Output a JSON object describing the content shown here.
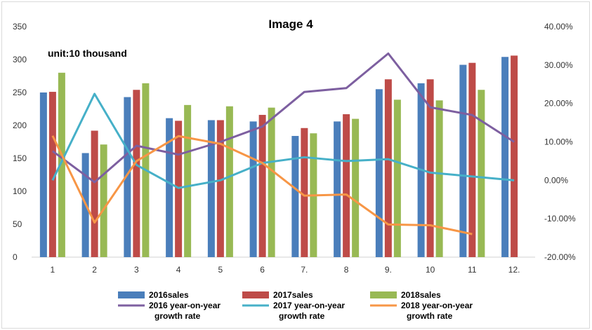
{
  "chart_data": {
    "type": "bar",
    "title": "Image 4",
    "annotation": "unit:10 thousand",
    "categories": [
      "1",
      "2",
      "3",
      "4",
      "5",
      "6",
      "7.",
      "8",
      "9.",
      "10",
      "11",
      "12."
    ],
    "y_left": {
      "range": [
        0,
        350
      ],
      "ticks": [
        "0",
        "50",
        "100",
        "150",
        "200",
        "250",
        "300",
        "350"
      ]
    },
    "y_right": {
      "range": [
        -20,
        40
      ],
      "ticks": [
        "-20.00%",
        "-10.00%",
        "0.00%",
        "10.00%",
        "20.00%",
        "30.00%",
        "40.00%"
      ]
    },
    "grid": false,
    "legend_placement": "bottom",
    "bar_series": [
      {
        "name": "2016sales",
        "color": "#4a7ebb",
        "values": [
          250,
          158,
          243,
          211,
          208,
          206,
          184,
          206,
          255,
          264,
          292,
          304
        ]
      },
      {
        "name": "2017sales",
        "color": "#be4b48",
        "values": [
          251,
          192,
          254,
          207,
          208,
          216,
          196,
          217,
          270,
          270,
          295,
          306
        ]
      },
      {
        "name": "2018sales",
        "color": "#98b954",
        "values": [
          280,
          171,
          264,
          231,
          229,
          227,
          188,
          210,
          239,
          238,
          254,
          null
        ]
      }
    ],
    "line_series": [
      {
        "name": "2016 year-on-year growth rate",
        "color": "#7d5fa0",
        "axis": "right",
        "values": [
          7.6,
          -0.5,
          9,
          6.7,
          10,
          14,
          23,
          24,
          33,
          19,
          17,
          10
        ]
      },
      {
        "name": "2017 year-on-year growth rate",
        "color": "#46b0c8",
        "axis": "right",
        "values": [
          0,
          22.5,
          4,
          -2,
          0,
          4.5,
          6,
          5,
          5.5,
          2,
          1,
          0
        ]
      },
      {
        "name": "2018 year-on-year growth rate",
        "color": "#f79646",
        "axis": "right",
        "values": [
          11.6,
          -11,
          5,
          11.5,
          9.5,
          4.5,
          -4,
          -3.7,
          -11.5,
          -11.7,
          -14,
          null
        ]
      }
    ]
  }
}
